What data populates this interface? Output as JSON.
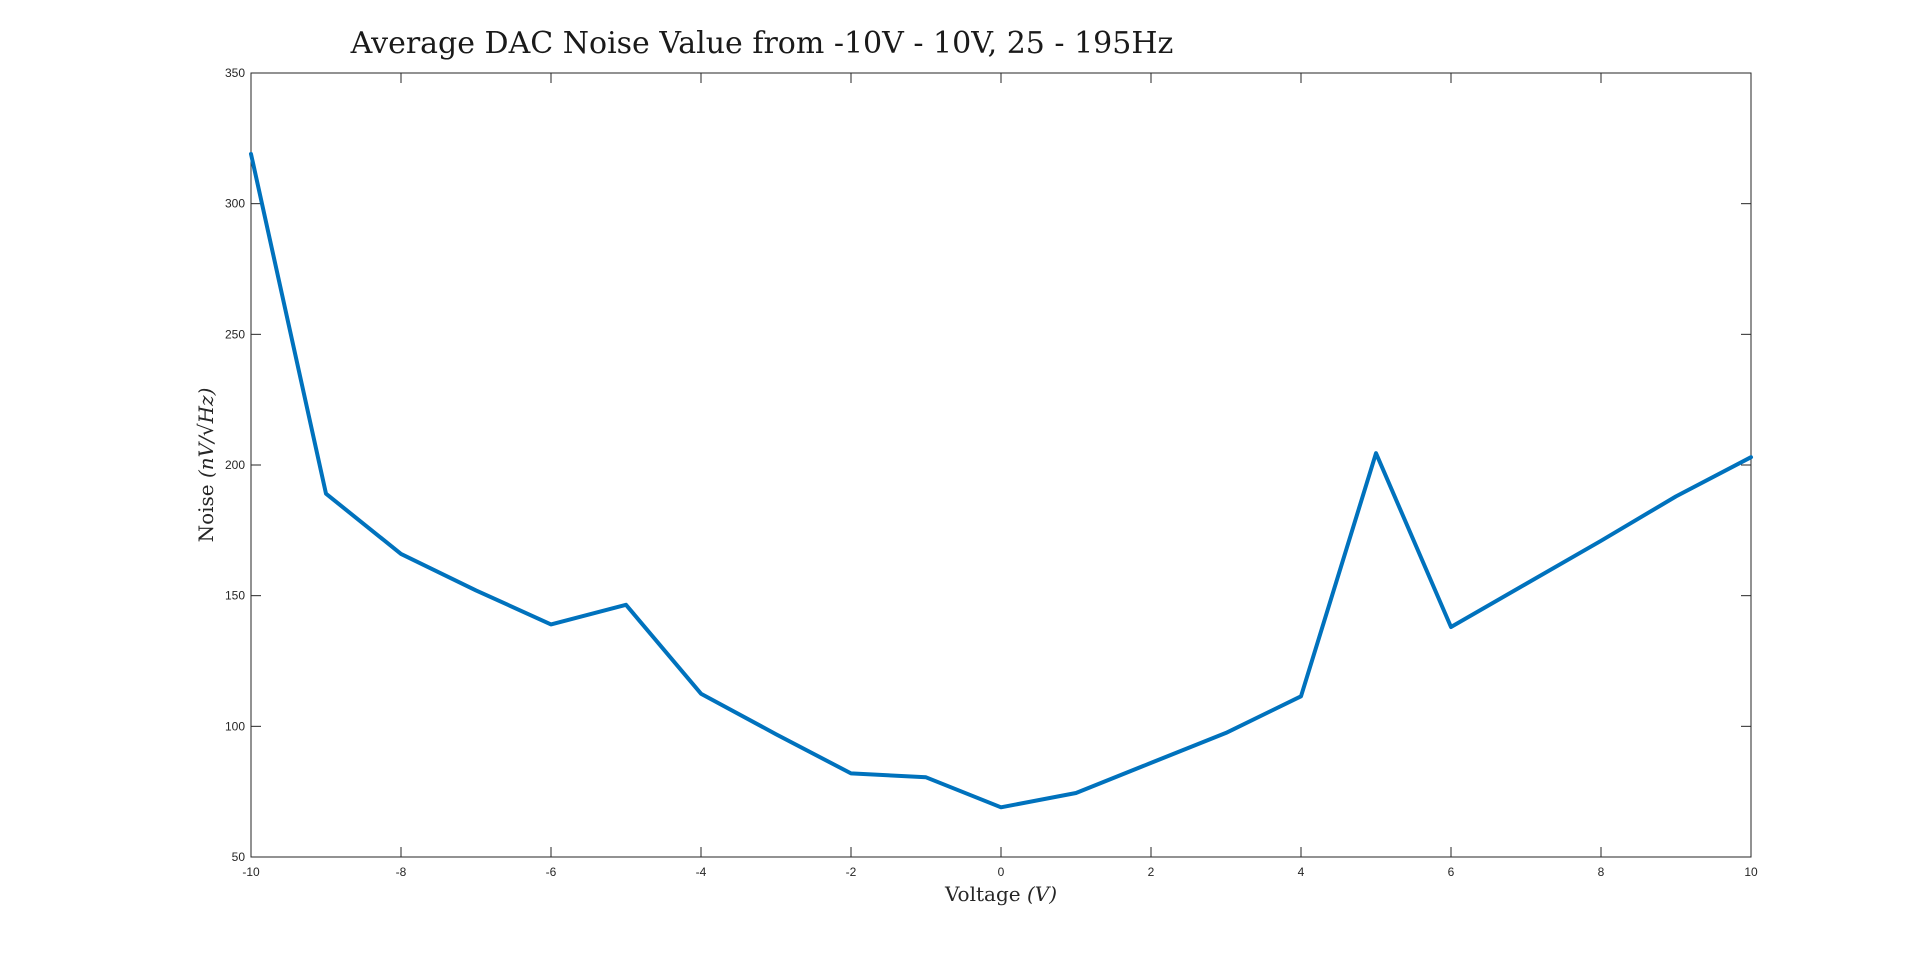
{
  "chart_data": {
    "type": "line",
    "title": "Average DAC Noise Value from -10V - 10V, 25 - 195Hz",
    "xlabel": "Voltage ",
    "xlabel_unit": "(V)",
    "ylabel": "Noise ",
    "ylabel_unit": "(nV/√Hz)",
    "xlim": [
      -10,
      10
    ],
    "ylim": [
      50,
      350
    ],
    "xticks": [
      -10,
      -8,
      -6,
      -4,
      -2,
      0,
      2,
      4,
      6,
      8,
      10
    ],
    "yticks": [
      50,
      100,
      150,
      200,
      250,
      300,
      350
    ],
    "grid": false,
    "series": [
      {
        "color": "#0072bd",
        "x": [
          -10,
          -9,
          -8,
          -7,
          -6,
          -5,
          -4,
          -3,
          -2,
          -1,
          0,
          1,
          2,
          3,
          4,
          5,
          6,
          7,
          8,
          9,
          10
        ],
        "y": [
          319,
          189,
          166,
          152,
          139,
          146.5,
          112.5,
          97,
          82,
          80.5,
          69,
          74.5,
          86,
          97.5,
          111.5,
          204.5,
          138,
          154.5,
          171,
          188,
          203
        ]
      }
    ]
  }
}
